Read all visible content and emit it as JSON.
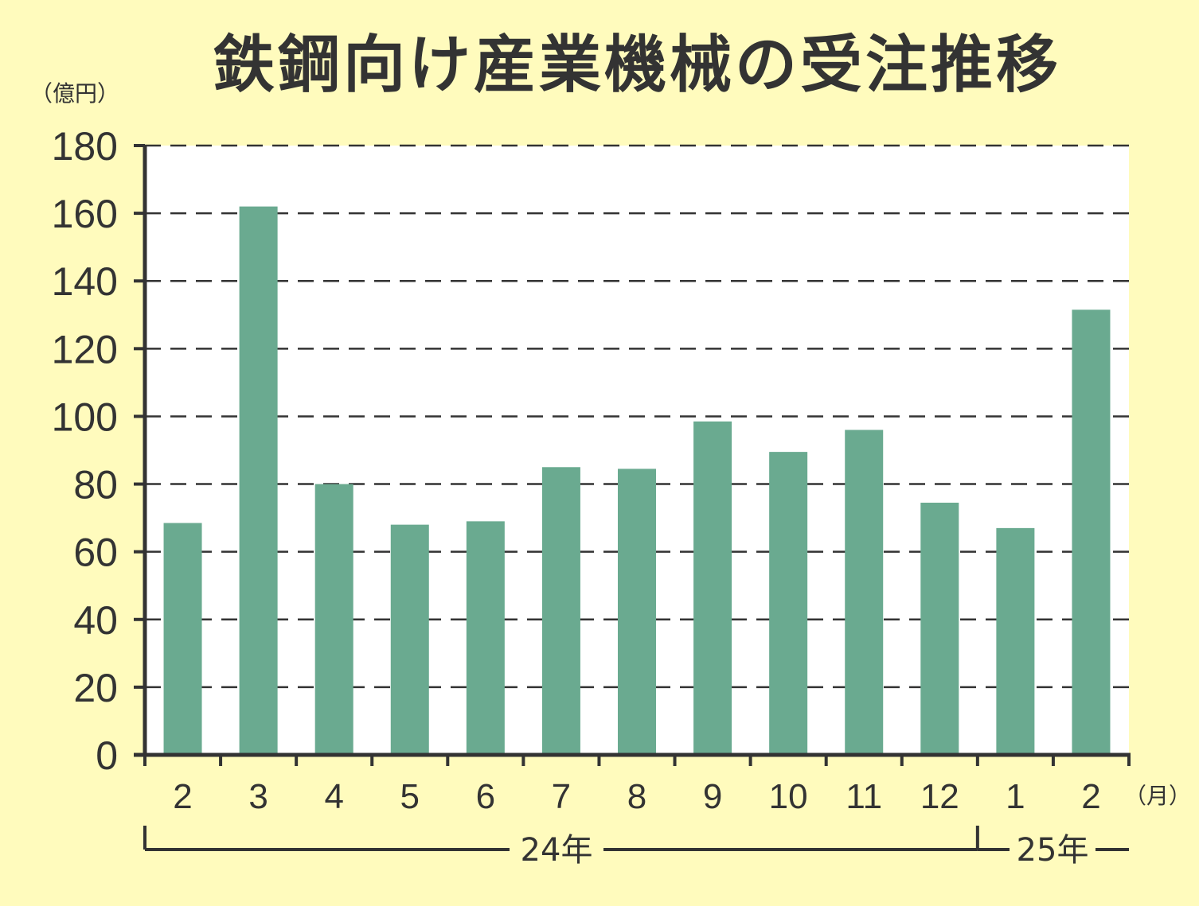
{
  "chart_data": {
    "type": "bar",
    "title": "鉄鋼向け産業機械の受注推移",
    "y_unit_label": "（億円）",
    "x_unit_label": "（月）",
    "categories": [
      "2",
      "3",
      "4",
      "5",
      "6",
      "7",
      "8",
      "9",
      "10",
      "11",
      "12",
      "1",
      "2"
    ],
    "values": [
      68.5,
      162,
      80,
      68,
      69,
      85,
      84.5,
      98.5,
      89.5,
      96,
      74.5,
      67,
      131.5
    ],
    "ylim": [
      0,
      180
    ],
    "yticks": [
      "0",
      "20",
      "40",
      "60",
      "80",
      "100",
      "120",
      "140",
      "160",
      "180"
    ],
    "year_groups": [
      {
        "label": "24年",
        "categories": [
          "2",
          "3",
          "4",
          "5",
          "6",
          "7",
          "8",
          "9",
          "10",
          "11",
          "12"
        ]
      },
      {
        "label": "25年",
        "categories": [
          "1",
          "2"
        ]
      }
    ],
    "grid": true,
    "colors": {
      "background": "#fffbbd",
      "plot_background": "#ffffff",
      "bar": "#6aaa90",
      "text": "#333333",
      "axis": "#333333"
    }
  }
}
